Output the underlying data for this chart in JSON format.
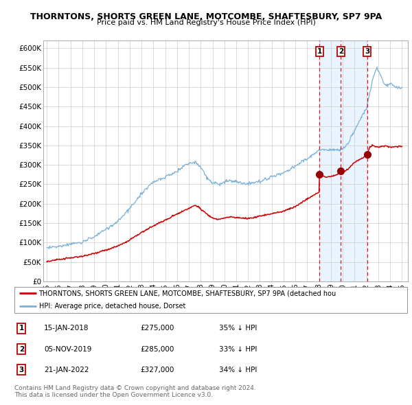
{
  "title": "THORNTONS, SHORTS GREEN LANE, MOTCOMBE, SHAFTESBURY, SP7 9PA",
  "subtitle": "Price paid vs. HM Land Registry's House Price Index (HPI)",
  "ylim": [
    0,
    620000
  ],
  "yticks": [
    0,
    50000,
    100000,
    150000,
    200000,
    250000,
    300000,
    350000,
    400000,
    450000,
    500000,
    550000,
    600000
  ],
  "ytick_labels": [
    "£0",
    "£50K",
    "£100K",
    "£150K",
    "£200K",
    "£250K",
    "£300K",
    "£350K",
    "£400K",
    "£450K",
    "£500K",
    "£550K",
    "£600K"
  ],
  "xlim_start": 1994.7,
  "xlim_end": 2025.5,
  "xtick_years": [
    1995,
    1996,
    1997,
    1998,
    1999,
    2000,
    2001,
    2002,
    2003,
    2004,
    2005,
    2006,
    2007,
    2008,
    2009,
    2010,
    2011,
    2012,
    2013,
    2014,
    2015,
    2016,
    2017,
    2018,
    2019,
    2020,
    2021,
    2022,
    2023,
    2024,
    2025
  ],
  "hpi_color": "#7ab0d8",
  "hpi_fill_color": "#ddeeff",
  "property_color": "#cc0000",
  "sale_line_color": "#dd0000",
  "sale_marker_color": "#990000",
  "sales": [
    {
      "num": 1,
      "year": 2018.04,
      "price": 275000
    },
    {
      "num": 2,
      "year": 2019.84,
      "price": 285000
    },
    {
      "num": 3,
      "year": 2022.05,
      "price": 327000
    }
  ],
  "legend_property": "THORNTONS, SHORTS GREEN LANE, MOTCOMBE, SHAFTESBURY, SP7 9PA (detached hou",
  "legend_hpi": "HPI: Average price, detached house, Dorset",
  "table_rows": [
    {
      "num": 1,
      "date": "15-JAN-2018",
      "price": "£275,000",
      "pct": "35% ↓ HPI"
    },
    {
      "num": 2,
      "date": "05-NOV-2019",
      "price": "£285,000",
      "pct": "33% ↓ HPI"
    },
    {
      "num": 3,
      "date": "21-JAN-2022",
      "price": "£327,000",
      "pct": "34% ↓ HPI"
    }
  ],
  "footer": "Contains HM Land Registry data © Crown copyright and database right 2024.\nThis data is licensed under the Open Government Licence v3.0.",
  "background_color": "#ffffff",
  "grid_color": "#cccccc"
}
